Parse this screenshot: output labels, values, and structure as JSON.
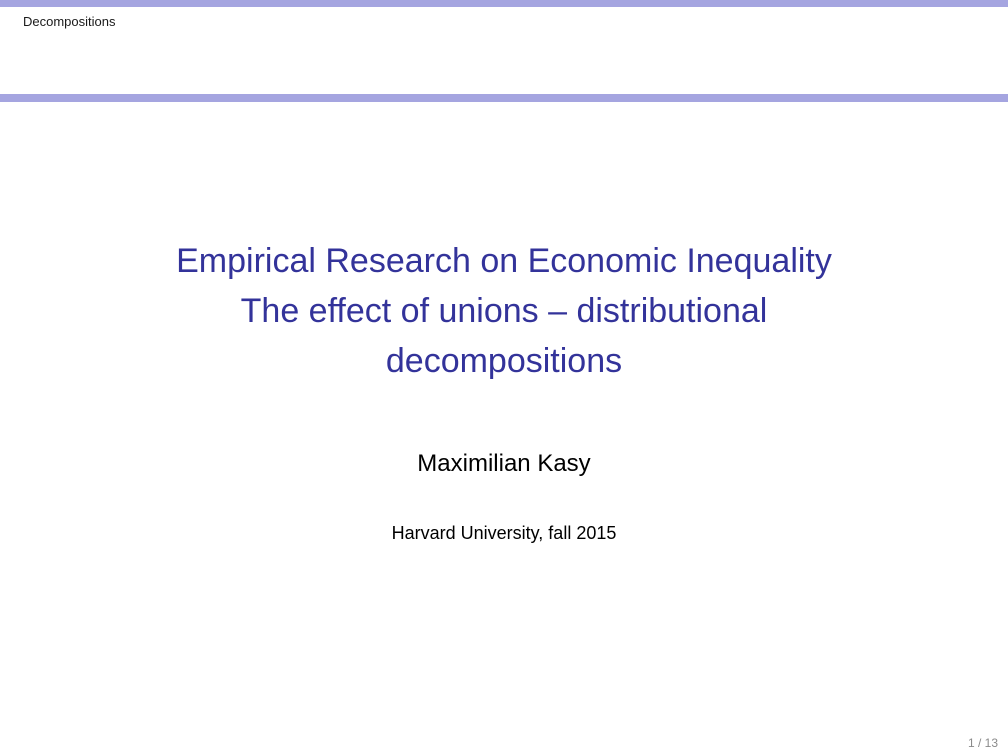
{
  "header": {
    "section_title": "Decompositions"
  },
  "title": {
    "lines": [
      "Empirical Research on Economic Inequality",
      "The effect of unions – distributional",
      "decompositions"
    ]
  },
  "author": "Maximilian Kasy",
  "institute": "Harvard University, fall 2015",
  "footer": {
    "page_number": "1 / 13"
  },
  "colors": {
    "accent_bar": "#a5a5e0",
    "title_text": "#33339a"
  }
}
